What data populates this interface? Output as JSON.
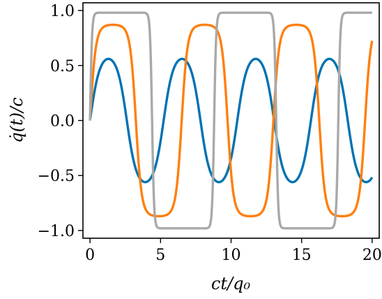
{
  "chart_data": {
    "type": "line",
    "title": "",
    "xlabel": "ct/q₀",
    "ylabel": "q̇(t)/c",
    "xlim": [
      -0.5,
      20.5
    ],
    "ylim": [
      -1.07,
      1.07
    ],
    "xticks": [
      0,
      5,
      10,
      15,
      20
    ],
    "yticks": [
      1.0,
      0.5,
      0.0,
      -0.5,
      -1.0
    ],
    "xtick_labels": [
      "0",
      "5",
      "10",
      "15",
      "20"
    ],
    "ytick_labels": [
      "1.0",
      "0.5",
      "0.0",
      "−0.5",
      "−1.0"
    ],
    "grid": false,
    "legend": "none",
    "series": [
      {
        "color": "#0072b2",
        "amplitude": 0.56,
        "period": 5.22,
        "x": [
          0,
          1.31,
          2.61,
          3.92,
          5.22,
          6.53,
          7.83,
          9.14,
          10.44,
          11.75,
          13.05,
          14.36,
          15.66,
          16.97,
          18.27,
          19.58,
          20
        ],
        "y": [
          0,
          0.56,
          0,
          -0.56,
          0,
          0.56,
          0,
          -0.56,
          0,
          0.56,
          0,
          -0.56,
          0,
          0.56,
          0,
          -0.56,
          -0.52
        ]
      },
      {
        "color": "#ff7f0e",
        "amplitude": 0.87,
        "period": 6.5,
        "x": [
          0,
          1.45,
          3.25,
          4.9,
          6.5,
          8.0,
          9.75,
          11.3,
          13.0,
          14.6,
          16.25,
          17.8,
          19.5,
          20
        ],
        "y": [
          0,
          0.87,
          0,
          -0.87,
          0,
          0.87,
          0,
          -0.87,
          0,
          0.87,
          0,
          -0.87,
          0.5,
          0.55
        ]
      },
      {
        "color": "#a9a9a9",
        "amplitude": 0.98,
        "period": 8.8,
        "x": [
          0,
          0.3,
          1.5,
          3.8,
          4.4,
          5.0,
          6.5,
          8.2,
          8.8,
          9.4,
          11.0,
          12.6,
          13.2,
          13.8,
          15.5,
          17.1,
          17.6,
          18.2,
          20
        ],
        "y": [
          0,
          0.9,
          0.98,
          0.96,
          0,
          -0.96,
          -0.98,
          -0.96,
          0,
          0.96,
          0.98,
          0.96,
          0,
          -0.96,
          -0.98,
          -0.96,
          0,
          0.96,
          0.98
        ]
      }
    ]
  }
}
